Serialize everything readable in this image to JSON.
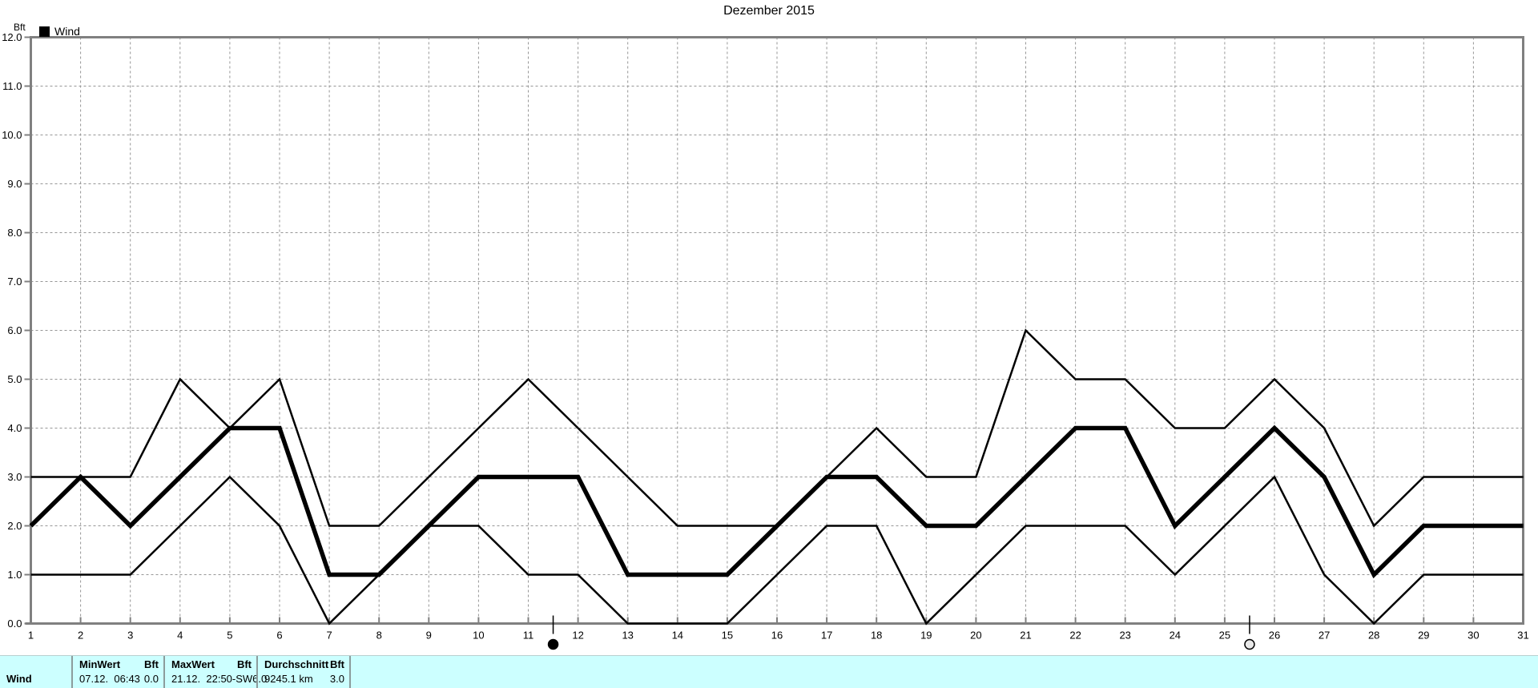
{
  "title": "Dezember 2015",
  "y_axis_unit": "Bft",
  "legend": {
    "label": "Wind",
    "swatch_color": "#000000"
  },
  "chart_data": {
    "type": "line",
    "title": "Dezember 2015",
    "ylabel": "Bft",
    "ylim": [
      0,
      12
    ],
    "grid": "dashed",
    "x": [
      1,
      2,
      3,
      4,
      5,
      6,
      7,
      8,
      9,
      10,
      11,
      12,
      13,
      14,
      15,
      16,
      17,
      18,
      19,
      20,
      21,
      22,
      23,
      24,
      25,
      26,
      27,
      28,
      29,
      30,
      31
    ],
    "x_tick_labels": [
      "1",
      "2",
      "3",
      "4",
      "5",
      "6",
      "7",
      "8",
      "9",
      "10",
      "11",
      "12",
      "13",
      "14",
      "15",
      "16",
      "17",
      "18",
      "19",
      "20",
      "21",
      "22",
      "23",
      "24",
      "25",
      "26",
      "27",
      "28",
      "29",
      "30",
      "31"
    ],
    "y_tick_labels": [
      "12.0",
      "11.0",
      "10.0",
      "9.0",
      "8.0",
      "7.0",
      "6.0",
      "5.0",
      "4.0",
      "3.0",
      "2.0",
      "1.0",
      "0.0"
    ],
    "series": [
      {
        "name": "daily-maximum",
        "values": [
          3,
          3,
          3,
          5,
          4,
          5,
          2,
          2,
          3,
          4,
          5,
          4,
          3,
          2,
          2,
          2,
          3,
          4,
          3,
          3,
          6,
          5,
          5,
          4,
          4,
          5,
          4,
          2,
          3,
          3,
          3
        ]
      },
      {
        "name": "daily-average",
        "values": [
          2,
          3,
          2,
          3,
          4,
          4,
          1,
          1,
          2,
          3,
          3,
          3,
          1,
          1,
          1,
          2,
          3,
          3,
          2,
          2,
          3,
          4,
          4,
          2,
          3,
          4,
          3,
          1,
          2,
          2,
          2
        ]
      },
      {
        "name": "daily-minimum",
        "values": [
          1,
          1,
          1,
          2,
          3,
          2,
          0,
          1,
          2,
          2,
          1,
          1,
          0,
          0,
          0,
          1,
          2,
          2,
          0,
          1,
          2,
          2,
          2,
          1,
          2,
          3,
          1,
          0,
          1,
          1,
          1
        ]
      }
    ],
    "moon_markers": [
      {
        "day": 11.5,
        "name": "new-moon",
        "style": "filled"
      },
      {
        "day": 25.5,
        "name": "full-moon",
        "style": "open"
      }
    ]
  },
  "summary_table": {
    "row_label": "Wind",
    "columns": [
      {
        "header": "MinWert",
        "unit_header": "Bft",
        "value": "07.12.  06:43",
        "unit_value": "0.0"
      },
      {
        "header": "MaxWert",
        "unit_header": "Bft",
        "value": "21.12.  22:50-SW",
        "unit_value": "6.0"
      },
      {
        "header": "Durchschnitt",
        "unit_header": "Bft",
        "value": "9245.1 km",
        "unit_value": "3.0"
      }
    ]
  },
  "colors": {
    "line": "#000000",
    "axis": "#808080",
    "grid": "#969696",
    "table_background": "#ccffff",
    "table_separator": "#8c9c9c",
    "background": "#ffffff"
  }
}
